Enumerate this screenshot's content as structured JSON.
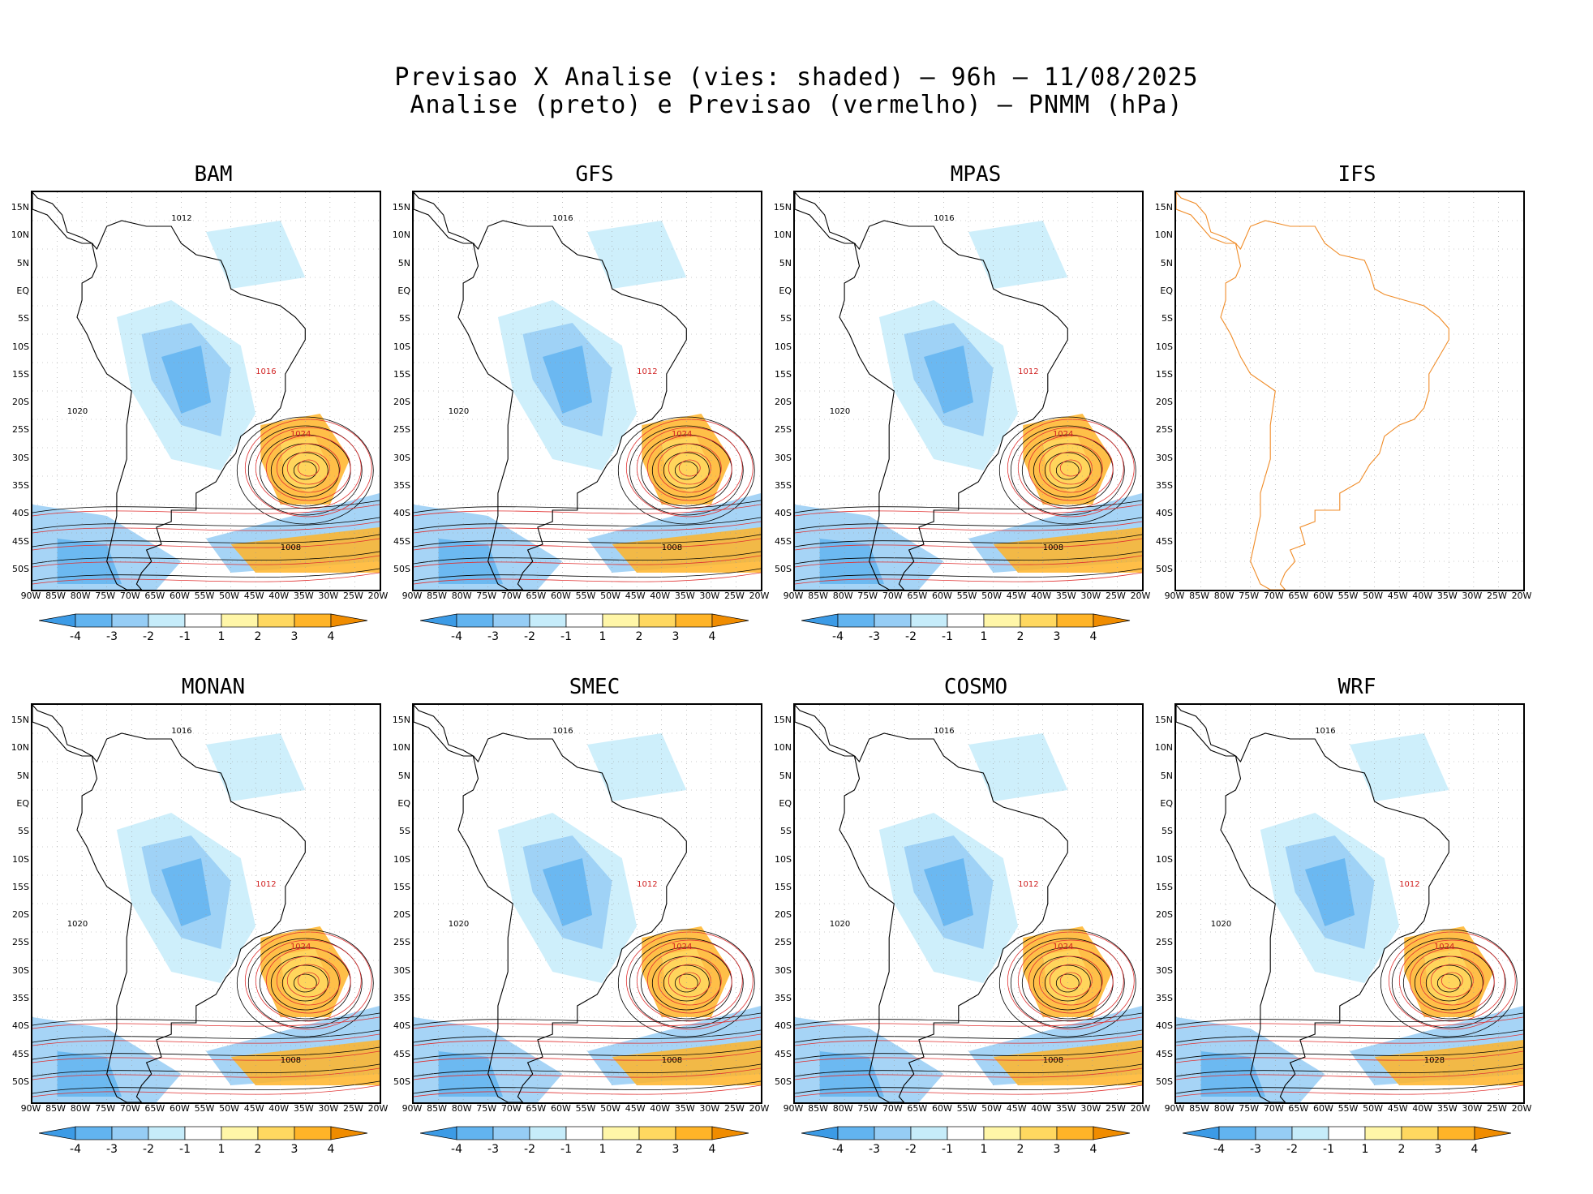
{
  "header": {
    "line1": "Previsao X Analise (vies: shaded) – 96h – 11/08/2025",
    "line2": "Analise (preto) e Previsao (vermelho) – PNMM (hPa)"
  },
  "axes": {
    "lat_labels": [
      "15N",
      "10N",
      "5N",
      "EQ",
      "5S",
      "10S",
      "15S",
      "20S",
      "25S",
      "30S",
      "35S",
      "40S",
      "45S",
      "50S"
    ],
    "lon_labels": [
      "90W",
      "85W",
      "80W",
      "75W",
      "70W",
      "65W",
      "60W",
      "55W",
      "50W",
      "45W",
      "40W",
      "35W",
      "30W",
      "25W",
      "20W"
    ]
  },
  "colorbar": {
    "labels": [
      "-4",
      "-3",
      "-2",
      "-1",
      "1",
      "2",
      "3",
      "4"
    ],
    "colors": [
      "#3c9be6",
      "#62b4f0",
      "#96cdf5",
      "#c6ecfa",
      "#ffffff",
      "#fff6a8",
      "#ffd860",
      "#ffb428",
      "#f08c00"
    ]
  },
  "panels": [
    {
      "name": "BAM",
      "has_data": true,
      "isobar_labels": [
        {
          "t": "1012"
        },
        {
          "t": "1016"
        },
        {
          "t": "1020"
        },
        {
          "t": "1024"
        },
        {
          "t": "1008"
        }
      ]
    },
    {
      "name": "GFS",
      "has_data": true,
      "isobar_labels": [
        {
          "t": "1016"
        },
        {
          "t": "1012"
        },
        {
          "t": "1020"
        },
        {
          "t": "1024"
        },
        {
          "t": "1008"
        }
      ]
    },
    {
      "name": "MPAS",
      "has_data": true,
      "isobar_labels": [
        {
          "t": "1016"
        },
        {
          "t": "1012"
        },
        {
          "t": "1020"
        },
        {
          "t": "1024"
        },
        {
          "t": "1008"
        }
      ]
    },
    {
      "name": "IFS",
      "has_data": false,
      "isobar_labels": []
    },
    {
      "name": "MONAN",
      "has_data": true,
      "isobar_labels": [
        {
          "t": "1016"
        },
        {
          "t": "1012"
        },
        {
          "t": "1020"
        },
        {
          "t": "1024"
        },
        {
          "t": "1008"
        }
      ]
    },
    {
      "name": "SMEC",
      "has_data": true,
      "isobar_labels": [
        {
          "t": "1016"
        },
        {
          "t": "1012"
        },
        {
          "t": "1020"
        },
        {
          "t": "1024"
        },
        {
          "t": "1008"
        }
      ]
    },
    {
      "name": "COSMO",
      "has_data": true,
      "isobar_labels": [
        {
          "t": "1016"
        },
        {
          "t": "1012"
        },
        {
          "t": "1020"
        },
        {
          "t": "1024"
        },
        {
          "t": "1008"
        }
      ]
    },
    {
      "name": "WRF",
      "has_data": true,
      "isobar_labels": [
        {
          "t": "1016"
        },
        {
          "t": "1012"
        },
        {
          "t": "1020"
        },
        {
          "t": "1024"
        },
        {
          "t": "1028"
        }
      ]
    }
  ]
}
